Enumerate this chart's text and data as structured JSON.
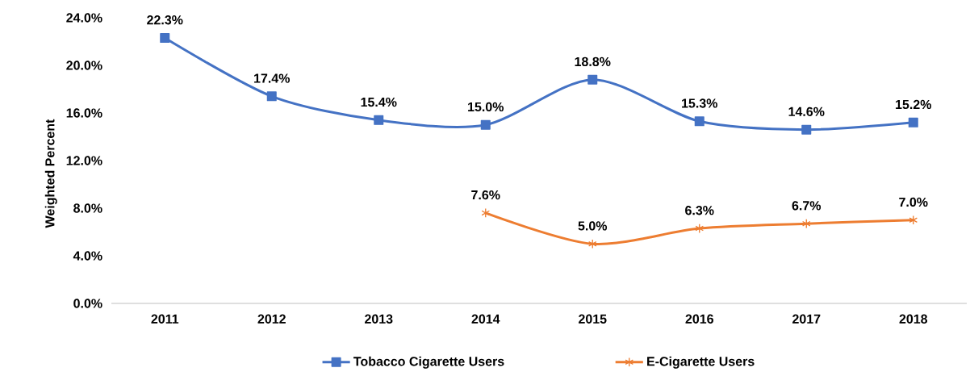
{
  "chart_data": {
    "type": "line",
    "ylabel": "Weighted Percent",
    "categories": [
      "2011",
      "2012",
      "2013",
      "2014",
      "2015",
      "2016",
      "2017",
      "2018"
    ],
    "series": [
      {
        "name": "Tobacco Cigarette Users",
        "color": "#4472c4",
        "marker": "square",
        "values": [
          22.3,
          17.4,
          15.4,
          15.0,
          18.8,
          15.3,
          14.6,
          15.2
        ],
        "value_labels": [
          "22.3%",
          "17.4%",
          "15.4%",
          "15.0%",
          "18.8%",
          "15.3%",
          "14.6%",
          "15.2%"
        ]
      },
      {
        "name": "E-Cigarette Users",
        "color": "#ed7d31",
        "marker": "cross",
        "values": [
          null,
          null,
          null,
          7.6,
          5.0,
          6.3,
          6.7,
          7.0
        ],
        "value_labels": [
          null,
          null,
          null,
          "7.6%",
          "5.0%",
          "6.3%",
          "6.7%",
          "7.0%"
        ]
      }
    ],
    "ylim": [
      0,
      24
    ],
    "yticks": [
      {
        "value": 0,
        "label": "0.0%"
      },
      {
        "value": 4,
        "label": "4.0%"
      },
      {
        "value": 8,
        "label": "8.0%"
      },
      {
        "value": 12,
        "label": "12.0%"
      },
      {
        "value": 16,
        "label": "16.0%"
      },
      {
        "value": 20,
        "label": "20.0%"
      },
      {
        "value": 24,
        "label": "24.0%"
      }
    ],
    "grid": false,
    "legend": "bottom",
    "line_style": "solid"
  }
}
